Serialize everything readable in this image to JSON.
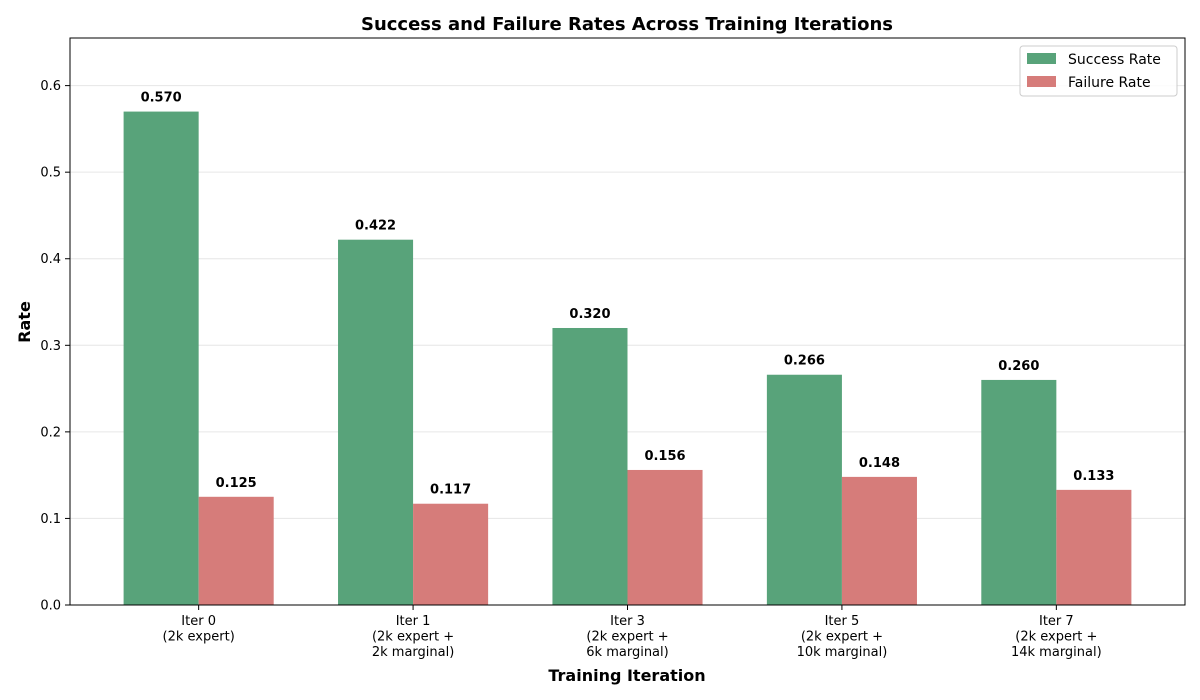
{
  "chart_data": {
    "type": "bar",
    "title": "Success and Failure Rates Across Training Iterations",
    "xlabel": "Training Iteration",
    "ylabel": "Rate",
    "ylim": [
      0,
      0.655
    ],
    "yticks": [
      "0.0",
      "0.1",
      "0.2",
      "0.3",
      "0.4",
      "0.5",
      "0.6"
    ],
    "grid": "horizontal",
    "legend_position": "top-right",
    "categories": [
      [
        "Iter 0",
        "(2k expert)"
      ],
      [
        "Iter 1",
        "(2k expert +",
        "2k marginal)"
      ],
      [
        "Iter 3",
        "(2k expert +",
        "6k marginal)"
      ],
      [
        "Iter 5",
        "(2k expert +",
        "10k marginal)"
      ],
      [
        "Iter 7",
        "(2k expert +",
        "14k marginal)"
      ]
    ],
    "series": [
      {
        "name": "Success Rate",
        "color": "#58a37a",
        "values": [
          0.57,
          0.422,
          0.32,
          0.266,
          0.26
        ],
        "labels": [
          "0.570",
          "0.422",
          "0.320",
          "0.266",
          "0.260"
        ]
      },
      {
        "name": "Failure Rate",
        "color": "#d67c7a",
        "values": [
          0.125,
          0.117,
          0.156,
          0.148,
          0.133
        ],
        "labels": [
          "0.125",
          "0.117",
          "0.156",
          "0.148",
          "0.133"
        ]
      }
    ]
  }
}
